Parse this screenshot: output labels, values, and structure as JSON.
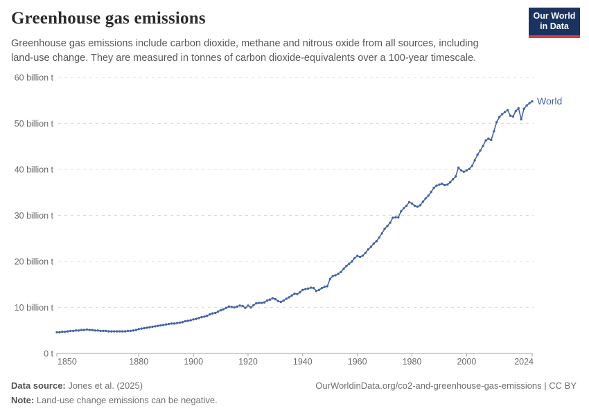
{
  "header": {
    "title": "Greenhouse gas emissions",
    "subtitle_lines": [
      "Greenhouse gas emissions include carbon dioxide, methane and nitrous oxide from all sources, including",
      "land-use change. They are measured in tonnes of carbon dioxide-equivalents over a 100-year timescale."
    ],
    "logo": {
      "line1": "Our World",
      "line2": "in Data",
      "bg_color": "#1a3360",
      "accent_color": "#dc3a46"
    }
  },
  "footer": {
    "data_source_label": "Data source:",
    "data_source_value": " Jones et al. (2025)",
    "note_label": "Note:",
    "note_value": " Land-use change emissions can be negative.",
    "attribution": "OurWorldinData.org/co2-and-greenhouse-gas-emissions | CC BY"
  },
  "chart_data": {
    "type": "line",
    "title": "Greenhouse gas emissions",
    "xlabel": "",
    "ylabel": "",
    "unit": "tonnes of carbon dioxide-equivalents",
    "xlim": [
      1850,
      2024
    ],
    "ylim": [
      0,
      60000000000
    ],
    "grid": "horizontal-dashed",
    "legend_position": "end-of-line",
    "x_ticks": [
      {
        "year": 1850,
        "label": "1850",
        "align": "start"
      },
      {
        "year": 1880,
        "label": "1880",
        "align": "middle"
      },
      {
        "year": 1900,
        "label": "1900",
        "align": "middle"
      },
      {
        "year": 1920,
        "label": "1920",
        "align": "middle"
      },
      {
        "year": 1940,
        "label": "1940",
        "align": "middle"
      },
      {
        "year": 1960,
        "label": "1960",
        "align": "middle"
      },
      {
        "year": 1980,
        "label": "1980",
        "align": "middle"
      },
      {
        "year": 2000,
        "label": "2000",
        "align": "middle"
      },
      {
        "year": 2024,
        "label": "2024",
        "align": "end"
      }
    ],
    "y_ticks": [
      {
        "value": 0,
        "label": "0 t"
      },
      {
        "value": 10,
        "label": "10 billion t"
      },
      {
        "value": 20,
        "label": "20 billion t"
      },
      {
        "value": 30,
        "label": "30 billion t"
      },
      {
        "value": 40,
        "label": "40 billion t"
      },
      {
        "value": 50,
        "label": "50 billion t"
      },
      {
        "value": 60,
        "label": "60 billion t"
      }
    ],
    "y_tick_unit": "billion t",
    "series": [
      {
        "name": "World",
        "color": "#4463a5",
        "x_start": 1850,
        "x_step": 1,
        "values_unit": "billion tonnes CO2-eq",
        "values": [
          4.6,
          4.6,
          4.7,
          4.7,
          4.8,
          4.9,
          4.9,
          5.0,
          5.0,
          5.1,
          5.1,
          5.2,
          5.1,
          5.1,
          5.0,
          5.0,
          4.9,
          4.9,
          4.9,
          4.8,
          4.8,
          4.8,
          4.8,
          4.8,
          4.8,
          4.8,
          4.9,
          4.9,
          5.0,
          5.1,
          5.3,
          5.4,
          5.5,
          5.6,
          5.7,
          5.8,
          5.9,
          6.0,
          6.1,
          6.2,
          6.3,
          6.4,
          6.5,
          6.5,
          6.6,
          6.7,
          6.8,
          7.0,
          7.1,
          7.2,
          7.4,
          7.5,
          7.7,
          7.9,
          8.0,
          8.2,
          8.5,
          8.7,
          8.8,
          9.1,
          9.4,
          9.6,
          9.9,
          10.2,
          10.1,
          10.0,
          10.2,
          10.4,
          10.3,
          9.9,
          10.4,
          10.0,
          10.5,
          10.9,
          11.0,
          11.0,
          11.1,
          11.5,
          11.7,
          12.0,
          11.8,
          11.4,
          11.2,
          11.5,
          11.9,
          12.2,
          12.6,
          13.0,
          12.9,
          13.3,
          13.8,
          14.0,
          14.1,
          14.3,
          14.2,
          13.6,
          13.8,
          14.2,
          14.5,
          14.6,
          16.2,
          16.8,
          17.0,
          17.3,
          17.7,
          18.4,
          19.0,
          19.5,
          20.0,
          20.7,
          21.2,
          21.0,
          21.3,
          21.9,
          22.6,
          23.2,
          23.9,
          24.4,
          25.2,
          26.1,
          27.1,
          27.7,
          28.4,
          29.5,
          29.6,
          29.6,
          30.9,
          31.6,
          32.1,
          32.9,
          32.6,
          32.1,
          31.9,
          32.2,
          33.0,
          33.7,
          34.3,
          35.1,
          36.0,
          36.5,
          36.7,
          36.9,
          36.6,
          36.7,
          37.2,
          37.9,
          38.5,
          40.4,
          39.8,
          39.5,
          39.8,
          40.1,
          40.8,
          42.0,
          43.2,
          44.1,
          45.1,
          46.3,
          46.7,
          46.4,
          48.3,
          50.3,
          51.4,
          52.0,
          52.5,
          52.9,
          51.7,
          51.5,
          52.7,
          53.3,
          50.9,
          53.2,
          53.9,
          54.4,
          54.8
        ]
      }
    ]
  }
}
